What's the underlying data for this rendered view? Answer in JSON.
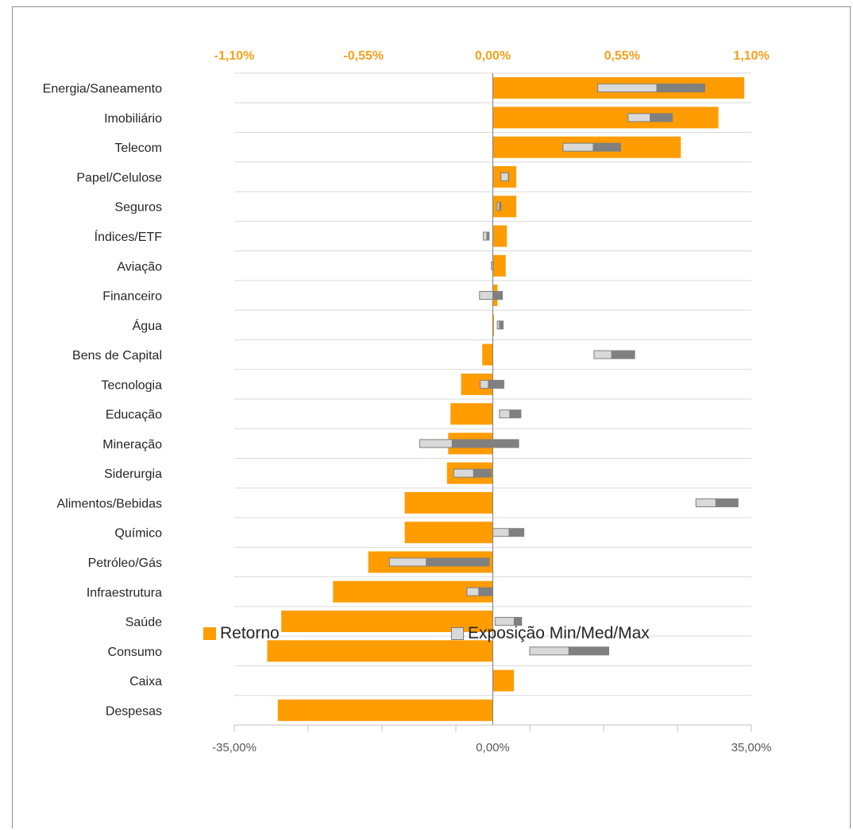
{
  "chart_data": {
    "type": "bar",
    "orientation": "horizontal",
    "categories": [
      "Energia/Saneamento",
      "Imobiliário",
      "Telecom",
      "Papel/Celulose",
      "Seguros",
      "Índices/ETF",
      "Aviação",
      "Financeiro",
      "Água",
      "Bens de Capital",
      "Tecnologia",
      "Educação",
      "Mineração",
      "Siderurgia",
      "Alimentos/Bebidas",
      "Químico",
      "Petróleo/Gás",
      "Infraestrutura",
      "Saúde",
      "Consumo",
      "Caixa",
      "Despesas"
    ],
    "series": [
      {
        "name": "Retorno",
        "axis": "top",
        "color": "#ff9c00",
        "values": [
          1.07,
          0.96,
          0.8,
          0.1,
          0.1,
          0.06,
          0.055,
          0.02,
          0.005,
          -0.045,
          -0.135,
          -0.18,
          -0.19,
          -0.195,
          -0.375,
          -0.375,
          -0.53,
          -0.68,
          -0.9,
          -0.96,
          0.09,
          -0.915
        ]
      },
      {
        "name": "Exposição Min/Med/Max",
        "axis": "bottom",
        "min_color": "#d9d9d9",
        "max_color": "#808080",
        "min": [
          14.2,
          18.3,
          9.5,
          1.1,
          0.6,
          -1.3,
          -0.2,
          -1.8,
          0.6,
          13.7,
          -1.7,
          0.9,
          -9.9,
          -5.3,
          27.5,
          0,
          -14.0,
          -3.5,
          0.3,
          5.0,
          null,
          null
        ],
        "med": [
          22.2,
          21.3,
          13.6,
          2.1,
          0.9,
          -0.8,
          0.0,
          0.0,
          0.9,
          16.1,
          -0.6,
          2.3,
          -5.5,
          -2.6,
          30.2,
          2.2,
          -9.0,
          -1.9,
          2.9,
          10.3,
          null,
          null
        ],
        "max": [
          28.7,
          24.3,
          17.3,
          2.1,
          1.1,
          -0.5,
          0.0,
          1.3,
          1.4,
          19.2,
          1.5,
          3.8,
          3.5,
          -0.2,
          33.2,
          4.2,
          -0.5,
          0.0,
          3.9,
          15.7,
          null,
          null
        ]
      }
    ],
    "top_axis": {
      "range": [
        -1.1,
        1.1
      ],
      "ticks": [
        "-1,10%",
        "-0,55%",
        "0,00%",
        "0,55%",
        "1,10%"
      ],
      "color": "#f7a01c"
    },
    "bottom_axis": {
      "range": [
        -35,
        35
      ],
      "ticks": [
        "-35,00%",
        "0,00%",
        "35,00%"
      ],
      "color": "#595959"
    },
    "grid": true,
    "legend_position": "bottom"
  },
  "legend": {
    "retorno_label": "Retorno",
    "exposicao_label": "Exposição Min/Med/Max"
  }
}
